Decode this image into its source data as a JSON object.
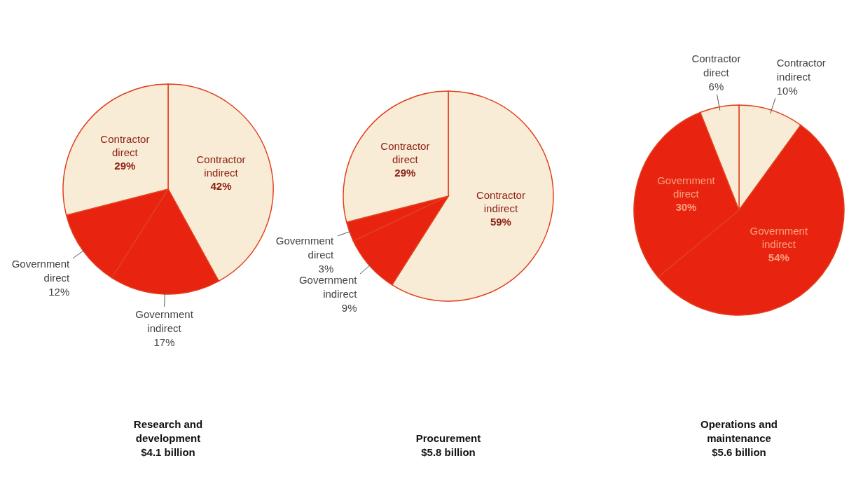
{
  "chart_data": [
    {
      "type": "pie",
      "title": "Research and development",
      "subtitle": "$4.1 billion",
      "categories": [
        "Contractor indirect",
        "Government indirect",
        "Government direct",
        "Contractor direct"
      ],
      "values": [
        42,
        17,
        12,
        29
      ],
      "value_labels": [
        "42%",
        "17%",
        "12%",
        "29%"
      ],
      "colors": [
        "#f9ecd6",
        "#e8230f",
        "#e8230f",
        "#f9ecd6"
      ]
    },
    {
      "type": "pie",
      "title": "Procurement",
      "subtitle": "$5.8 billion",
      "categories": [
        "Contractor indirect",
        "Government indirect",
        "Government direct",
        "Contractor direct"
      ],
      "values": [
        59,
        9,
        3,
        29
      ],
      "value_labels": [
        "59%",
        "9%",
        "3%",
        "29%"
      ],
      "colors": [
        "#f9ecd6",
        "#e8230f",
        "#e8230f",
        "#f9ecd6"
      ]
    },
    {
      "type": "pie",
      "title": "Operations and maintenance",
      "subtitle": "$5.6 billion",
      "categories": [
        "Contractor indirect",
        "Government indirect",
        "Government direct",
        "Contractor direct"
      ],
      "values": [
        10,
        54,
        30,
        6
      ],
      "value_labels": [
        "10%",
        "54%",
        "30%",
        "6%"
      ],
      "colors": [
        "#f9ecd6",
        "#e8230f",
        "#e8230f",
        "#f9ecd6"
      ]
    }
  ]
}
